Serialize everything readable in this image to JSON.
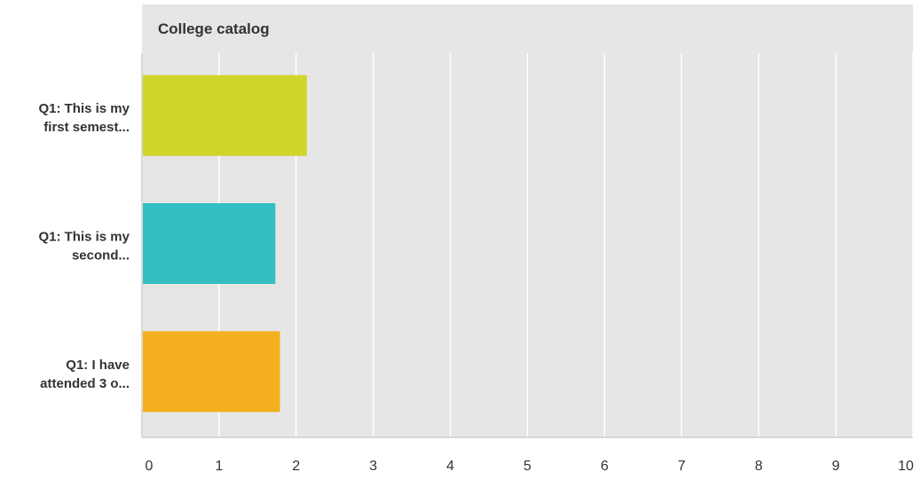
{
  "chart_data": {
    "type": "bar",
    "orientation": "horizontal",
    "title": "College catalog",
    "categories": [
      [
        "Q1: This is my",
        "first semest..."
      ],
      [
        "Q1: This is my",
        "second..."
      ],
      [
        "Q1: I have",
        "attended 3 o..."
      ]
    ],
    "values": [
      2.14,
      1.73,
      1.79
    ],
    "xlim": [
      0,
      10
    ],
    "xticks": [
      "0",
      "1",
      "2",
      "3",
      "4",
      "5",
      "6",
      "7",
      "8",
      "9",
      "10"
    ],
    "grid": true,
    "legend": "none"
  },
  "colors": {
    "bars": [
      "#d1d52a",
      "#33bfc1",
      "#f5af1f"
    ],
    "plot_background": "#e6e6e6",
    "grid": "#ffffff",
    "axis": "#d9d9d9",
    "label": "#333333"
  }
}
